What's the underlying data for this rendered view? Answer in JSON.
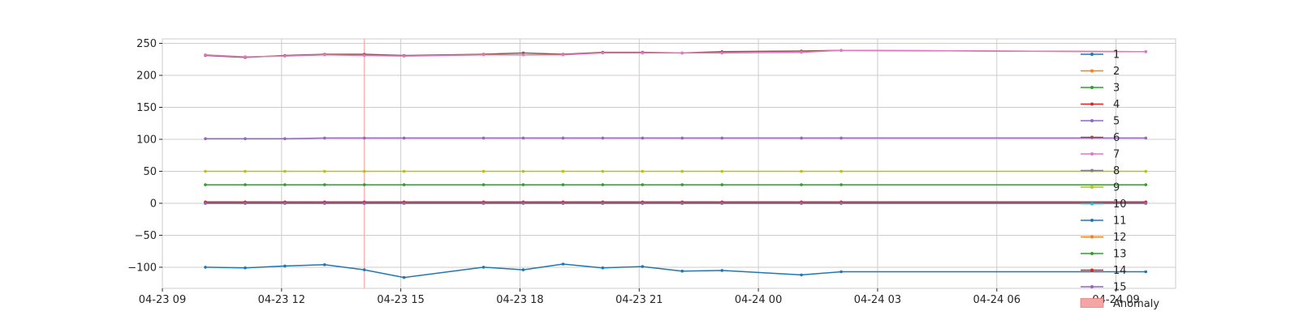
{
  "chart_data": {
    "type": "line",
    "xlim": [
      "2024-04-23 09:00",
      "2024-04-24 10:30"
    ],
    "ylim": [
      -133,
      257
    ],
    "grid": true,
    "legend_position": "right",
    "x_ticks": [
      "2024-04-23 09:00",
      "2024-04-23 12:00",
      "2024-04-23 15:00",
      "2024-04-23 18:00",
      "2024-04-23 21:00",
      "2024-04-24 00:00",
      "2024-04-24 03:00",
      "2024-04-24 06:00",
      "2024-04-24 09:00"
    ],
    "x_tick_labels": [
      "04-23 09",
      "04-23 12",
      "04-23 15",
      "04-23 18",
      "04-23 21",
      "04-24 00",
      "04-24 03",
      "04-24 06",
      "04-24 09"
    ],
    "y_ticks": [
      250,
      200,
      150,
      100,
      50,
      0,
      -50,
      -100
    ],
    "y_tick_labels": [
      "250",
      "200",
      "150",
      "100",
      "50",
      "0",
      "−50",
      "−100"
    ],
    "x": [
      "2024-04-23 10:05",
      "2024-04-23 11:05",
      "2024-04-23 12:05",
      "2024-04-23 13:05",
      "2024-04-23 14:05",
      "2024-04-23 15:05",
      "2024-04-23 17:05",
      "2024-04-23 18:05",
      "2024-04-23 19:05",
      "2024-04-23 20:05",
      "2024-04-23 21:05",
      "2024-04-23 22:05",
      "2024-04-23 23:05",
      "2024-04-24 01:05",
      "2024-04-24 02:05",
      "2024-04-24 09:45"
    ],
    "series": [
      {
        "name": "1",
        "color": "#1f77b4",
        "values": [
          -100,
          -101,
          -98,
          -96,
          -104,
          -116,
          -100,
          -104,
          -95,
          -101,
          -99,
          -106,
          -105,
          -112,
          -107,
          -107
        ]
      },
      {
        "name": "2",
        "color": "#ff7f0e",
        "values": [
          1,
          1,
          1,
          1,
          1,
          1,
          1,
          1,
          1,
          1,
          1,
          1,
          1,
          1,
          1,
          1
        ]
      },
      {
        "name": "3",
        "color": "#2ca02c",
        "values": [
          29,
          29,
          29,
          29,
          29,
          29,
          29,
          29,
          29,
          29,
          29,
          29,
          29,
          29,
          29,
          29
        ]
      },
      {
        "name": "4",
        "color": "#d62728",
        "values": [
          2,
          2,
          2,
          2,
          2,
          2,
          2,
          2,
          2,
          2,
          2,
          2,
          2,
          2,
          2,
          2
        ]
      },
      {
        "name": "5",
        "color": "#9467bd",
        "values": [
          101,
          101,
          101,
          102,
          102,
          102,
          102,
          102,
          102,
          102,
          102,
          102,
          102,
          102,
          102,
          102
        ]
      },
      {
        "name": "6",
        "color": "#8c564b",
        "values": [
          231,
          228,
          231,
          233,
          233,
          231,
          233,
          235,
          233,
          236,
          236,
          235,
          237,
          238,
          239,
          237
        ]
      },
      {
        "name": "7",
        "color": "#e377c2",
        "values": [
          232,
          229,
          230,
          232,
          231,
          230,
          232,
          232,
          232,
          235,
          235,
          235,
          235,
          236,
          239,
          237
        ]
      },
      {
        "name": "8",
        "color": "#7f7f7f",
        "values": [
          0,
          0,
          0,
          0,
          0,
          0,
          0,
          0,
          0,
          0,
          0,
          0,
          0,
          0,
          0,
          0
        ]
      },
      {
        "name": "9",
        "color": "#bcbd22",
        "values": [
          50,
          50,
          50,
          50,
          50,
          50,
          50,
          50,
          50,
          50,
          50,
          50,
          50,
          50,
          50,
          50
        ]
      },
      {
        "name": "10",
        "color": "#17becf",
        "values": [
          0,
          0,
          0,
          0,
          0,
          0,
          0,
          0,
          0,
          0,
          0,
          0,
          0,
          0,
          0,
          0
        ]
      },
      {
        "name": "11",
        "color": "#1f77b4",
        "values": [
          0,
          0,
          0,
          0,
          0,
          0,
          0,
          0,
          0,
          0,
          0,
          0,
          0,
          0,
          0,
          0
        ]
      },
      {
        "name": "12",
        "color": "#ff7f0e",
        "values": [
          1,
          1,
          1,
          1,
          1,
          1,
          1,
          1,
          1,
          1,
          1,
          1,
          1,
          1,
          1,
          1
        ]
      },
      {
        "name": "13",
        "color": "#2ca02c",
        "values": [
          1,
          1,
          1,
          1,
          1,
          1,
          1,
          1,
          1,
          1,
          1,
          1,
          1,
          1,
          1,
          1
        ]
      },
      {
        "name": "14",
        "color": "#d62728",
        "values": [
          2,
          2,
          2,
          2,
          2,
          2,
          2,
          2,
          2,
          2,
          2,
          2,
          2,
          2,
          2,
          2
        ]
      },
      {
        "name": "15",
        "color": "#9467bd",
        "values": [
          0,
          0,
          0,
          0,
          0,
          0,
          0,
          0,
          0,
          0,
          0,
          0,
          0,
          0,
          0,
          0
        ]
      }
    ],
    "anomaly": {
      "label": "Anomaly",
      "color": "#f4a6a6",
      "x": "2024-04-23 14:05"
    }
  }
}
